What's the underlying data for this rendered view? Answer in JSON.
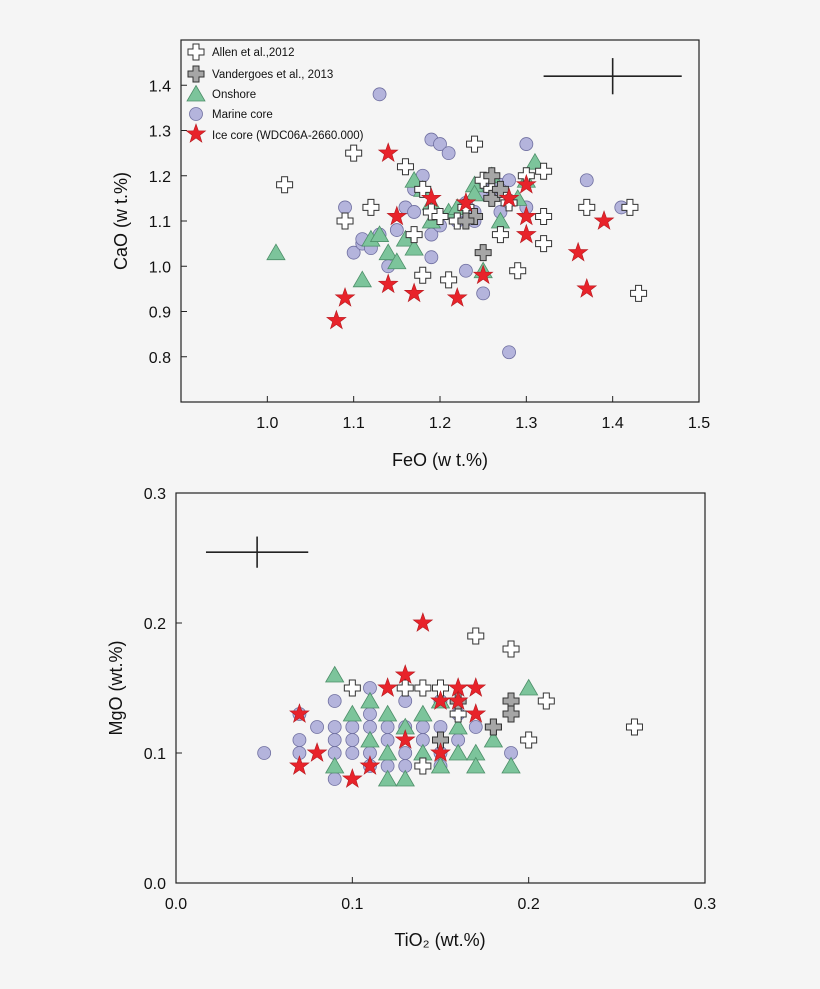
{
  "colors": {
    "background": "#f5f5f5",
    "allen": "#ffffff",
    "vandergoes": "#a6a6a6",
    "onshore": "#7cc49b",
    "marine": "#b4b4dc",
    "ice": "#e8232a",
    "axis": "#222222"
  },
  "chart_data": [
    {
      "type": "scatter",
      "xlabel": "FeO (w t.%)",
      "ylabel": "CaO (w t.%)",
      "xlim": [
        0.9,
        1.5
      ],
      "ylim": [
        0.7,
        1.5
      ],
      "xticks": [
        1.0,
        1.1,
        1.2,
        1.3,
        1.4,
        1.5
      ],
      "xtick_labels": [
        "1.0",
        "1.1",
        "1.2",
        "1.3",
        "1.4",
        "1.5"
      ],
      "yticks": [
        0.8,
        0.9,
        1.0,
        1.1,
        1.2,
        1.3,
        1.4
      ],
      "ytick_labels": [
        "0.8",
        "0.9",
        "1.0",
        "1.1",
        "1.2",
        "1.3",
        "1.4"
      ],
      "grid": false,
      "legend_position": "top-left",
      "error_bar": {
        "center": [
          1.4,
          1.42
        ],
        "x_halfwidth": 0.08,
        "y_halfwidth": 0.04
      },
      "series": [
        {
          "name": "Allen et al.,2012",
          "marker": "cross-white",
          "points": [
            [
              1.02,
              1.18
            ],
            [
              1.1,
              1.25
            ],
            [
              1.09,
              1.1
            ],
            [
              1.12,
              1.13
            ],
            [
              1.16,
              1.22
            ],
            [
              1.18,
              1.17
            ],
            [
              1.19,
              1.12
            ],
            [
              1.18,
              0.98
            ],
            [
              1.21,
              0.97
            ],
            [
              1.24,
              1.27
            ],
            [
              1.25,
              1.19
            ],
            [
              1.26,
              1.17
            ],
            [
              1.28,
              1.14
            ],
            [
              1.29,
              0.99
            ],
            [
              1.27,
              1.07
            ],
            [
              1.3,
              1.2
            ],
            [
              1.32,
              1.21
            ],
            [
              1.32,
              1.11
            ],
            [
              1.32,
              1.05
            ],
            [
              1.37,
              1.13
            ],
            [
              1.42,
              1.13
            ],
            [
              1.43,
              0.94
            ],
            [
              1.23,
              1.13
            ],
            [
              1.22,
              1.1
            ],
            [
              1.2,
              1.11
            ],
            [
              1.17,
              1.07
            ]
          ]
        },
        {
          "name": "Vandergoes et al., 2013",
          "marker": "cross-grey",
          "points": [
            [
              1.25,
              1.03
            ],
            [
              1.24,
              1.11
            ],
            [
              1.26,
              1.15
            ],
            [
              1.27,
              1.17
            ],
            [
              1.23,
              1.1
            ],
            [
              1.26,
              1.2
            ]
          ]
        },
        {
          "name": "Onshore",
          "marker": "triangle",
          "points": [
            [
              1.01,
              1.03
            ],
            [
              1.11,
              0.97
            ],
            [
              1.12,
              1.06
            ],
            [
              1.14,
              1.03
            ],
            [
              1.15,
              1.01
            ],
            [
              1.16,
              1.06
            ],
            [
              1.17,
              1.19
            ],
            [
              1.18,
              1.17
            ],
            [
              1.19,
              1.14
            ],
            [
              1.19,
              1.1
            ],
            [
              1.21,
              1.12
            ],
            [
              1.22,
              1.13
            ],
            [
              1.24,
              1.18
            ],
            [
              1.25,
              0.99
            ],
            [
              1.26,
              1.2
            ],
            [
              1.27,
              1.1
            ],
            [
              1.3,
              1.19
            ],
            [
              1.31,
              1.23
            ],
            [
              1.29,
              1.15
            ],
            [
              1.24,
              1.16
            ],
            [
              1.17,
              1.04
            ],
            [
              1.13,
              1.07
            ]
          ]
        },
        {
          "name": "Marine core",
          "marker": "circle",
          "points": [
            [
              1.09,
              1.13
            ],
            [
              1.1,
              1.03
            ],
            [
              1.11,
              1.05
            ],
            [
              1.11,
              1.06
            ],
            [
              1.12,
              1.04
            ],
            [
              1.13,
              1.38
            ],
            [
              1.13,
              1.07
            ],
            [
              1.14,
              1.0
            ],
            [
              1.15,
              1.08
            ],
            [
              1.16,
              1.13
            ],
            [
              1.17,
              1.17
            ],
            [
              1.17,
              1.12
            ],
            [
              1.18,
              1.2
            ],
            [
              1.19,
              1.07
            ],
            [
              1.19,
              1.02
            ],
            [
              1.19,
              1.28
            ],
            [
              1.2,
              1.27
            ],
            [
              1.21,
              1.25
            ],
            [
              1.22,
              1.1
            ],
            [
              1.23,
              0.99
            ],
            [
              1.23,
              1.14
            ],
            [
              1.24,
              1.12
            ],
            [
              1.25,
              1.16
            ],
            [
              1.25,
              0.94
            ],
            [
              1.26,
              1.17
            ],
            [
              1.27,
              1.12
            ],
            [
              1.27,
              1.18
            ],
            [
              1.28,
              1.19
            ],
            [
              1.28,
              0.81
            ],
            [
              1.3,
              1.27
            ],
            [
              1.3,
              1.13
            ],
            [
              1.37,
              1.19
            ],
            [
              1.41,
              1.13
            ],
            [
              1.24,
              1.1
            ],
            [
              1.2,
              1.09
            ]
          ]
        },
        {
          "name": "Ice core (WDC06A-2660.000)",
          "marker": "star",
          "points": [
            [
              1.08,
              0.88
            ],
            [
              1.09,
              0.93
            ],
            [
              1.14,
              0.96
            ],
            [
              1.14,
              1.25
            ],
            [
              1.15,
              1.11
            ],
            [
              1.17,
              0.94
            ],
            [
              1.19,
              1.15
            ],
            [
              1.22,
              0.93
            ],
            [
              1.23,
              1.14
            ],
            [
              1.25,
              0.98
            ],
            [
              1.28,
              1.15
            ],
            [
              1.3,
              1.18
            ],
            [
              1.3,
              1.11
            ],
            [
              1.3,
              1.07
            ],
            [
              1.36,
              1.03
            ],
            [
              1.37,
              0.95
            ],
            [
              1.39,
              1.1
            ]
          ]
        }
      ]
    },
    {
      "type": "scatter",
      "xlabel": "TiO₂ (wt.%)",
      "ylabel": "MgO (wt.%)",
      "xlim": [
        0.0,
        0.3
      ],
      "ylim": [
        0.0,
        0.3
      ],
      "xticks": [
        0.0,
        0.1,
        0.2,
        0.3
      ],
      "xtick_labels": [
        "0.0",
        "0.1",
        "0.2",
        "0.3"
      ],
      "yticks": [
        0.0,
        0.1,
        0.2,
        0.3
      ],
      "ytick_labels": [
        "0.0",
        "0.1",
        "0.2",
        "0.3"
      ],
      "grid": false,
      "error_bar": {
        "center": [
          0.046,
          0.2545
        ],
        "x_halfwidth": 0.029,
        "y_halfwidth": 0.012
      },
      "series": [
        {
          "name": "Allen et al.,2012",
          "marker": "cross-white",
          "points": [
            [
              0.1,
              0.15
            ],
            [
              0.13,
              0.15
            ],
            [
              0.14,
              0.15
            ],
            [
              0.15,
              0.15
            ],
            [
              0.14,
              0.09
            ],
            [
              0.16,
              0.13
            ],
            [
              0.17,
              0.19
            ],
            [
              0.18,
              0.12
            ],
            [
              0.19,
              0.18
            ],
            [
              0.2,
              0.11
            ],
            [
              0.21,
              0.14
            ],
            [
              0.26,
              0.12
            ]
          ]
        },
        {
          "name": "Vandergoes et al., 2013",
          "marker": "cross-grey",
          "points": [
            [
              0.15,
              0.11
            ],
            [
              0.16,
              0.14
            ],
            [
              0.19,
              0.14
            ],
            [
              0.19,
              0.13
            ],
            [
              0.18,
              0.12
            ]
          ]
        },
        {
          "name": "Onshore",
          "marker": "triangle",
          "points": [
            [
              0.09,
              0.16
            ],
            [
              0.09,
              0.09
            ],
            [
              0.1,
              0.13
            ],
            [
              0.11,
              0.14
            ],
            [
              0.11,
              0.11
            ],
            [
              0.12,
              0.13
            ],
            [
              0.12,
              0.1
            ],
            [
              0.12,
              0.08
            ],
            [
              0.13,
              0.08
            ],
            [
              0.13,
              0.12
            ],
            [
              0.14,
              0.13
            ],
            [
              0.14,
              0.1
            ],
            [
              0.15,
              0.14
            ],
            [
              0.15,
              0.09
            ],
            [
              0.16,
              0.12
            ],
            [
              0.16,
              0.1
            ],
            [
              0.17,
              0.1
            ],
            [
              0.17,
              0.09
            ],
            [
              0.18,
              0.11
            ],
            [
              0.19,
              0.09
            ],
            [
              0.2,
              0.15
            ]
          ]
        },
        {
          "name": "Marine core",
          "marker": "circle",
          "points": [
            [
              0.05,
              0.1
            ],
            [
              0.07,
              0.11
            ],
            [
              0.07,
              0.1
            ],
            [
              0.07,
              0.13
            ],
            [
              0.08,
              0.12
            ],
            [
              0.09,
              0.14
            ],
            [
              0.09,
              0.12
            ],
            [
              0.09,
              0.11
            ],
            [
              0.09,
              0.1
            ],
            [
              0.09,
              0.08
            ],
            [
              0.1,
              0.12
            ],
            [
              0.1,
              0.11
            ],
            [
              0.1,
              0.1
            ],
            [
              0.11,
              0.15
            ],
            [
              0.11,
              0.13
            ],
            [
              0.11,
              0.12
            ],
            [
              0.11,
              0.1
            ],
            [
              0.11,
              0.09
            ],
            [
              0.12,
              0.12
            ],
            [
              0.12,
              0.11
            ],
            [
              0.12,
              0.09
            ],
            [
              0.13,
              0.14
            ],
            [
              0.13,
              0.12
            ],
            [
              0.13,
              0.1
            ],
            [
              0.13,
              0.09
            ],
            [
              0.14,
              0.12
            ],
            [
              0.14,
              0.11
            ],
            [
              0.15,
              0.14
            ],
            [
              0.15,
              0.12
            ],
            [
              0.15,
              0.1
            ],
            [
              0.16,
              0.13
            ],
            [
              0.16,
              0.11
            ],
            [
              0.17,
              0.12
            ],
            [
              0.19,
              0.1
            ],
            [
              0.15,
              0.09
            ]
          ]
        },
        {
          "name": "Ice core (WDC06A-2660.000)",
          "marker": "star",
          "points": [
            [
              0.07,
              0.13
            ],
            [
              0.07,
              0.09
            ],
            [
              0.08,
              0.1
            ],
            [
              0.1,
              0.08
            ],
            [
              0.11,
              0.09
            ],
            [
              0.12,
              0.15
            ],
            [
              0.13,
              0.16
            ],
            [
              0.13,
              0.11
            ],
            [
              0.14,
              0.2
            ],
            [
              0.15,
              0.14
            ],
            [
              0.15,
              0.1
            ],
            [
              0.16,
              0.15
            ],
            [
              0.16,
              0.14
            ],
            [
              0.17,
              0.15
            ],
            [
              0.17,
              0.13
            ]
          ]
        }
      ]
    }
  ]
}
